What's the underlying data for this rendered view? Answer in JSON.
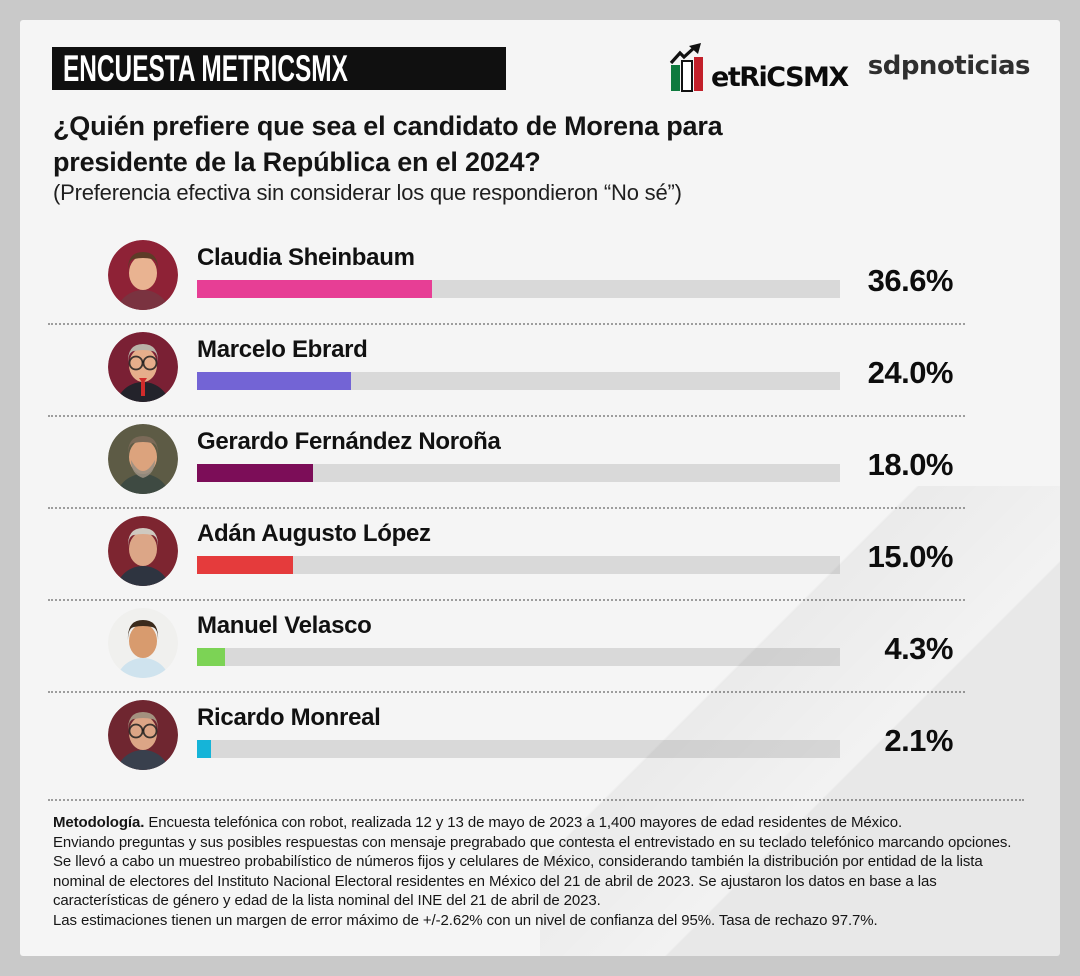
{
  "header": {
    "badge": "ENCUESTA METRICSMX",
    "logo_text": "etRiCSMX",
    "partner": "sdpnoticias",
    "title": "¿Quién prefiere que sea el candidato de Morena para\npresidente de la República en el 2024?",
    "subtitle": "(Preferencia efectiva sin considerar los que respondieron “No sé”)"
  },
  "colors": {
    "outer_background": "#c9c9c9",
    "card_background": "#f5f5f5",
    "bar_track": "#d9d9d9",
    "badge_background": "#101010",
    "logo_green": "#0e7a3e",
    "logo_red": "#c2202a",
    "text": "#111111"
  },
  "chart_data": {
    "type": "bar",
    "orientation": "horizontal",
    "title": "¿Quién prefiere que sea el candidato de Morena para presidente de la República en el 2024?",
    "subtitle": "(Preferencia efectiva sin considerar los que respondieron “No sé”)",
    "xlim": [
      0,
      100
    ],
    "unit": "%",
    "bars": [
      {
        "category": "Claudia Sheinbaum",
        "value": 36.6,
        "label": "36.6%",
        "color": "#e73e95",
        "avatar": {
          "bg": "#8e2236",
          "skin": "#e9b391",
          "hair": "#5d3b27",
          "shirt": "#7a3340",
          "glasses": false,
          "beard": null,
          "tie": null
        }
      },
      {
        "category": "Marcelo Ebrard",
        "value": 24.0,
        "label": "24.0%",
        "color": "#7364d5",
        "avatar": {
          "bg": "#7a2034",
          "skin": "#e6ae8b",
          "hair": "#b9b2a8",
          "shirt": "#23232b",
          "glasses": true,
          "beard": null,
          "tie": "#d12b2b"
        }
      },
      {
        "category": "Gerardo Fernández Noroña",
        "value": 18.0,
        "label": "18.0%",
        "color": "#7c0d58",
        "avatar": {
          "bg": "#5d5b45",
          "skin": "#dca37d",
          "hair": "#7b6a58",
          "shirt": "#3e4a42",
          "glasses": false,
          "beard": "#9a8f82",
          "tie": null
        }
      },
      {
        "category": "Adán Augusto López",
        "value": 15.0,
        "label": "15.0%",
        "color": "#e53b3c",
        "avatar": {
          "bg": "#7d2530",
          "skin": "#dca687",
          "hair": "#cfc9c0",
          "shirt": "#2e3440",
          "glasses": false,
          "beard": null,
          "tie": null
        }
      },
      {
        "category": "Manuel Velasco",
        "value": 4.3,
        "label": "4.3%",
        "color": "#7cd355",
        "avatar": {
          "bg": "#f0f0ee",
          "skin": "#d89b6e",
          "hair": "#3a2a1c",
          "shirt": "#cfe3ee",
          "glasses": false,
          "beard": null,
          "tie": null
        }
      },
      {
        "category": "Ricardo Monreal",
        "value": 2.1,
        "label": "2.1%",
        "color": "#15b4d8",
        "avatar": {
          "bg": "#6f2630",
          "skin": "#dca586",
          "hair": "#a3927f",
          "shirt": "#39404d",
          "glasses": true,
          "beard": null,
          "tie": null
        }
      }
    ]
  },
  "footer": {
    "lead": "Metodología.",
    "lines": [
      " Encuesta telefónica con robot, realizada 12 y 13 de mayo de 2023 a 1,400 mayores de edad residentes de México.",
      "Enviando preguntas y sus posibles respuestas con mensaje pregrabado que contesta el entrevistado en su teclado telefónico marcando opciones.",
      "Se llevó a cabo un muestreo probabilístico de números fijos y celulares de México, considerando también la distribución por entidad de la lista",
      "nominal de electores del Instituto Nacional Electoral residentes en México del 21 de abril de 2023. Se ajustaron los datos en base a las",
      "características de género y edad de la lista nominal del INE del 21 de abril de 2023.",
      "Las estimaciones tienen un margen de error máximo de +/-2.62% con un nivel de confianza del 95%. Tasa de rechazo 97.7%."
    ]
  }
}
